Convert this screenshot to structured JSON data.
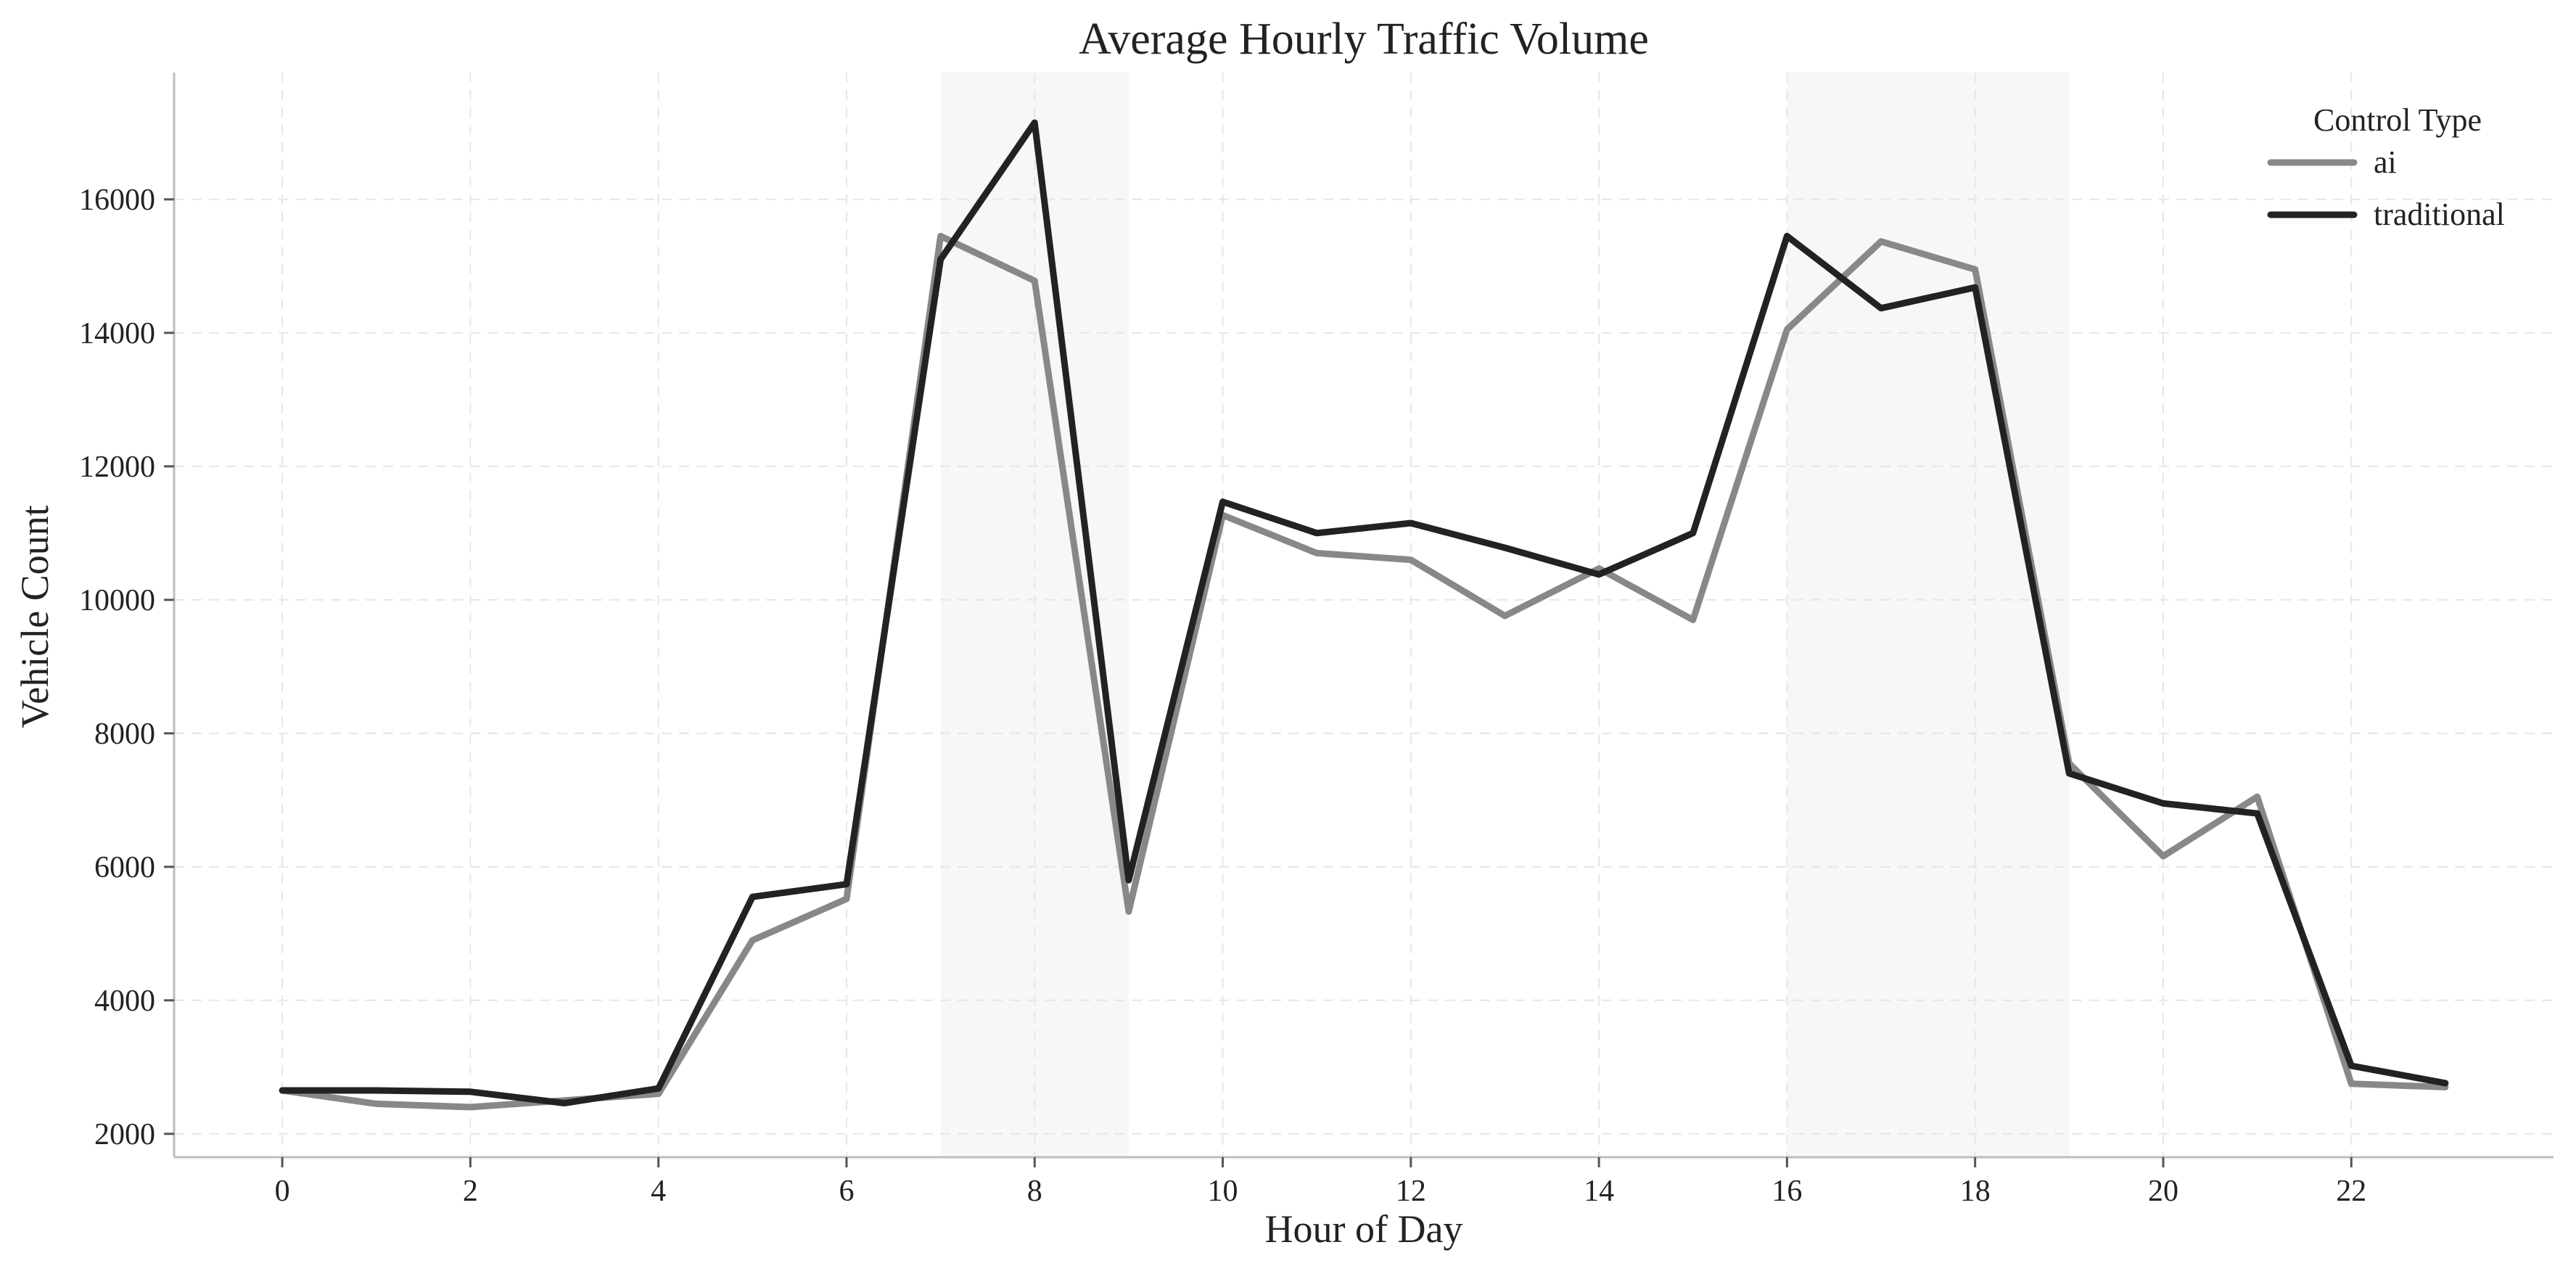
{
  "chart_data": {
    "type": "line",
    "title": "Average Hourly Traffic Volume",
    "xlabel": "Hour of Day",
    "ylabel": "Vehicle Count",
    "xlim": [
      -1.15,
      24.15
    ],
    "ylim": [
      1650,
      17900
    ],
    "x_ticks": [
      0,
      2,
      4,
      6,
      8,
      10,
      12,
      14,
      16,
      18,
      20,
      22
    ],
    "y_ticks": [
      2000,
      4000,
      6000,
      8000,
      10000,
      12000,
      14000,
      16000
    ],
    "grid": true,
    "legend": {
      "title": "Control Type",
      "position": "top-right"
    },
    "shaded_regions": [
      {
        "x_start": 7,
        "x_end": 9,
        "color": "#f7f7f7"
      },
      {
        "x_start": 16,
        "x_end": 19,
        "color": "#f7f7f7"
      }
    ],
    "x": [
      0,
      1,
      2,
      3,
      4,
      5,
      6,
      7,
      8,
      9,
      10,
      11,
      12,
      13,
      14,
      15,
      16,
      17,
      18,
      19,
      20,
      21,
      22,
      23
    ],
    "series": [
      {
        "name": "ai",
        "color": "#888888",
        "values": [
          2650,
          2450,
          2400,
          2500,
          2600,
          4900,
          5520,
          15450,
          14780,
          5330,
          11270,
          10700,
          10600,
          9760,
          10470,
          9700,
          14050,
          15370,
          14950,
          7550,
          6160,
          7050,
          2750,
          2700
        ]
      },
      {
        "name": "traditional",
        "color": "#222222",
        "values": [
          2650,
          2650,
          2630,
          2460,
          2680,
          5550,
          5740,
          15100,
          17150,
          5800,
          11470,
          11000,
          11150,
          10780,
          10380,
          11000,
          15450,
          14370,
          14680,
          7400,
          6950,
          6800,
          3020,
          2760
        ]
      }
    ]
  }
}
